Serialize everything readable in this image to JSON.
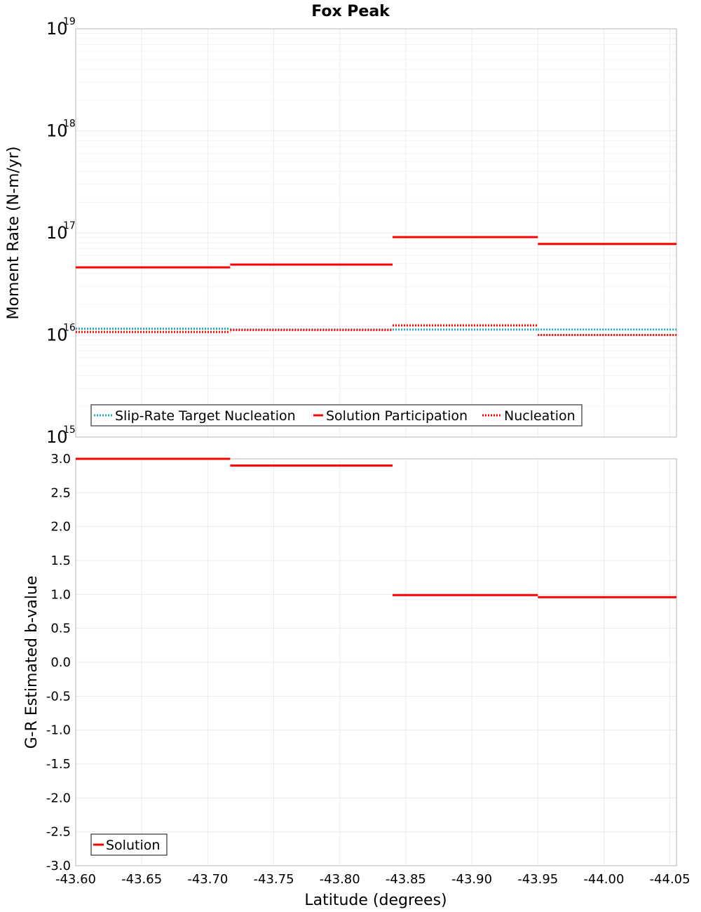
{
  "chart_data": [
    {
      "type": "line",
      "title": "Fox Peak",
      "ylabel": "Moment Rate (N-m/yr)",
      "yscale": "log",
      "ylim": [
        1000000000000000.0,
        1e+19
      ],
      "xlim": [
        -43.6,
        -44.055
      ],
      "y_tick_base": "10",
      "y_tick_exponents": [
        "15",
        "16",
        "17",
        "18",
        "19"
      ],
      "legend": {
        "placement": "bottom-left",
        "entries": [
          "Slip-Rate Target Nucleation",
          "Solution Participation",
          "Nucleation"
        ]
      },
      "series": [
        {
          "name": "Slip-Rate Target Nucleation",
          "color": "#22aabb",
          "style": "dotted",
          "segments": [
            {
              "x": [
                -43.6,
                -43.717
              ],
              "y": 1.15e+16
            },
            {
              "x": [
                -43.717,
                -43.84
              ],
              "y": 1.13e+16
            },
            {
              "x": [
                -43.84,
                -43.95
              ],
              "y": 1.13e+16
            },
            {
              "x": [
                -43.95,
                -44.055
              ],
              "y": 1.13e+16
            }
          ]
        },
        {
          "name": "Solution Participation",
          "color": "#ff0000",
          "style": "solid",
          "segments": [
            {
              "x": [
                -43.6,
                -43.717
              ],
              "y": 4.6e+16
            },
            {
              "x": [
                -43.717,
                -43.84
              ],
              "y": 4.9e+16
            },
            {
              "x": [
                -43.84,
                -43.95
              ],
              "y": 9.1e+16
            },
            {
              "x": [
                -43.95,
                -44.055
              ],
              "y": 7.8e+16
            }
          ]
        },
        {
          "name": "Nucleation",
          "color": "#ff0000",
          "style": "dotted",
          "segments": [
            {
              "x": [
                -43.6,
                -43.717
              ],
              "y": 1.07e+16
            },
            {
              "x": [
                -43.717,
                -43.84
              ],
              "y": 1.12e+16
            },
            {
              "x": [
                -43.84,
                -43.95
              ],
              "y": 1.24e+16
            },
            {
              "x": [
                -43.95,
                -44.055
              ],
              "y": 1e+16
            }
          ]
        }
      ]
    },
    {
      "type": "line",
      "title": "",
      "xlabel": "Latitude (degrees)",
      "ylabel": "G-R Estimated b-value",
      "ylim": [
        -3.0,
        3.0
      ],
      "xlim": [
        -43.6,
        -44.055
      ],
      "y_ticks": [
        "3.0",
        "2.5",
        "2.0",
        "1.5",
        "1.0",
        "0.5",
        "0.0",
        "-0.5",
        "-1.0",
        "-1.5",
        "-2.0",
        "-2.5",
        "-3.0"
      ],
      "x_ticks": [
        "-43.60",
        "-43.65",
        "-43.70",
        "-43.75",
        "-43.80",
        "-43.85",
        "-43.90",
        "-43.95",
        "-44.00",
        "-44.05"
      ],
      "legend": {
        "placement": "bottom-left",
        "entries": [
          "Solution"
        ]
      },
      "series": [
        {
          "name": "Solution",
          "color": "#ff0000",
          "style": "solid",
          "segments": [
            {
              "x": [
                -43.6,
                -43.717
              ],
              "y": 3.0
            },
            {
              "x": [
                -43.717,
                -43.84
              ],
              "y": 2.9
            },
            {
              "x": [
                -43.84,
                -43.95
              ],
              "y": 0.99
            },
            {
              "x": [
                -43.95,
                -44.055
              ],
              "y": 0.96
            }
          ]
        }
      ]
    }
  ]
}
